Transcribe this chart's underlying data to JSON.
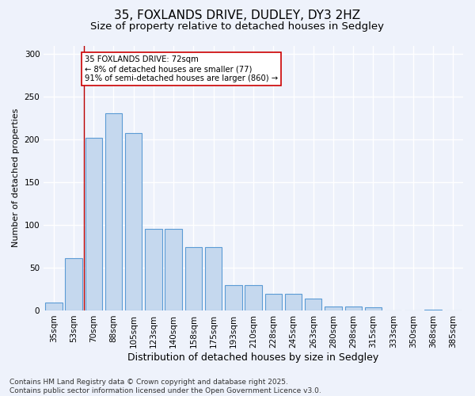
{
  "title": "35, FOXLANDS DRIVE, DUDLEY, DY3 2HZ",
  "subtitle": "Size of property relative to detached houses in Sedgley",
  "xlabel": "Distribution of detached houses by size in Sedgley",
  "ylabel": "Number of detached properties",
  "categories": [
    "35sqm",
    "53sqm",
    "70sqm",
    "88sqm",
    "105sqm",
    "123sqm",
    "140sqm",
    "158sqm",
    "175sqm",
    "193sqm",
    "210sqm",
    "228sqm",
    "245sqm",
    "263sqm",
    "280sqm",
    "298sqm",
    "315sqm",
    "333sqm",
    "350sqm",
    "368sqm",
    "385sqm"
  ],
  "values": [
    9,
    61,
    202,
    231,
    208,
    95,
    95,
    74,
    74,
    30,
    30,
    19,
    19,
    14,
    5,
    5,
    4,
    0,
    0,
    1,
    0
  ],
  "bar_color": "#c5d8ee",
  "bar_edge_color": "#5b9bd5",
  "annotation_text": "35 FOXLANDS DRIVE: 72sqm\n← 8% of detached houses are smaller (77)\n91% of semi-detached houses are larger (860) →",
  "annotation_box_color": "#ffffff",
  "annotation_box_edge_color": "#cc0000",
  "vline_color": "#bb0000",
  "vline_x": 1.5,
  "background_color": "#eef2fb",
  "grid_color": "#ffffff",
  "footnote": "Contains HM Land Registry data © Crown copyright and database right 2025.\nContains public sector information licensed under the Open Government Licence v3.0.",
  "ylim": [
    0,
    310
  ],
  "title_fontsize": 11,
  "subtitle_fontsize": 9.5,
  "xlabel_fontsize": 9,
  "ylabel_fontsize": 8,
  "tick_fontsize": 7.5,
  "footnote_fontsize": 6.5
}
